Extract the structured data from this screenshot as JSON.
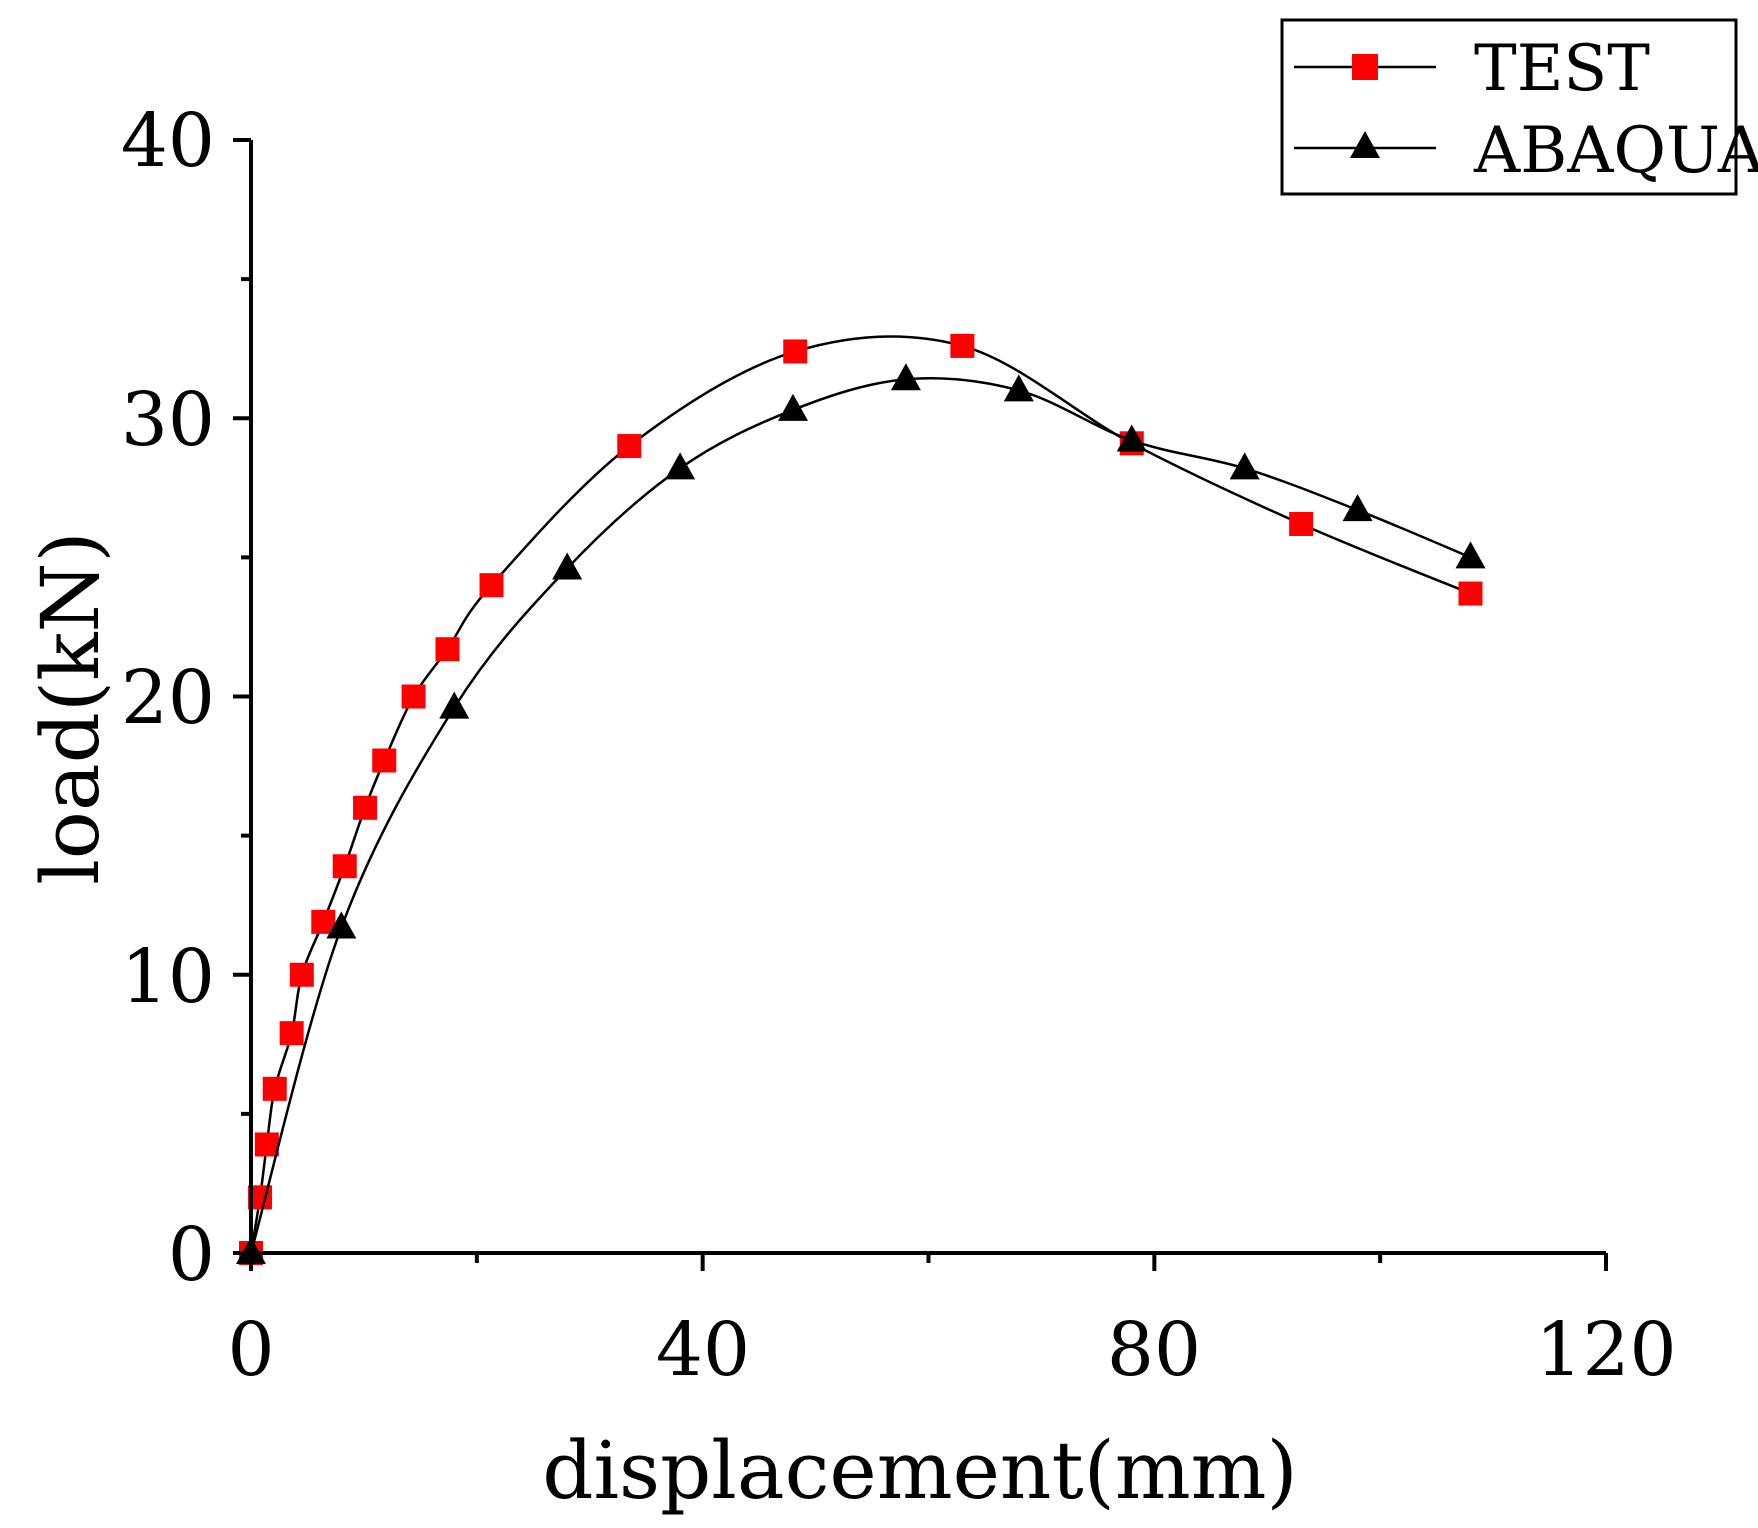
{
  "chart_data": {
    "type": "line",
    "title": "",
    "xlabel": "displacement(mm)",
    "ylabel": "load(kN)",
    "xlim": [
      0,
      120
    ],
    "ylim": [
      0,
      40
    ],
    "x_ticks": [
      "0",
      "40",
      "80",
      "120"
    ],
    "y_ticks": [
      "0",
      "10",
      "20",
      "30",
      "40"
    ],
    "x_tick_values": [
      0,
      40,
      80,
      120
    ],
    "y_tick_values": [
      0,
      10,
      20,
      30,
      40
    ],
    "x_minor_ticks": [
      20,
      60,
      100
    ],
    "y_minor_ticks": [
      5,
      15,
      25,
      35
    ],
    "grid": false,
    "legend_position": "top-right",
    "series": [
      {
        "name": "TEST",
        "marker": "square",
        "marker_color": "#ff0000",
        "line_color": "#000000",
        "x": [
          0,
          0.8,
          1.4,
          2.1,
          3.6,
          4.5,
          6.4,
          8.3,
          10.1,
          11.8,
          14.4,
          17.4,
          21.3,
          33.5,
          48.2,
          63.0,
          78.0,
          93.0,
          108.0
        ],
        "y": [
          0,
          2.0,
          3.9,
          5.9,
          7.9,
          10.0,
          11.9,
          13.9,
          16.0,
          17.7,
          20.0,
          21.7,
          24.0,
          29.0,
          32.4,
          32.6,
          29.1,
          26.2,
          23.7
        ]
      },
      {
        "name": "ABAQUAS",
        "marker": "triangle",
        "marker_color": "#000000",
        "line_color": "#000000",
        "x": [
          0,
          8.0,
          18.0,
          28.0,
          38.0,
          48.0,
          58.0,
          68.0,
          78.0,
          88.0,
          98.0,
          108.0
        ],
        "y": [
          0,
          11.7,
          19.6,
          24.6,
          28.2,
          30.3,
          31.4,
          31.0,
          29.2,
          28.2,
          26.7,
          25.0
        ]
      }
    ]
  }
}
